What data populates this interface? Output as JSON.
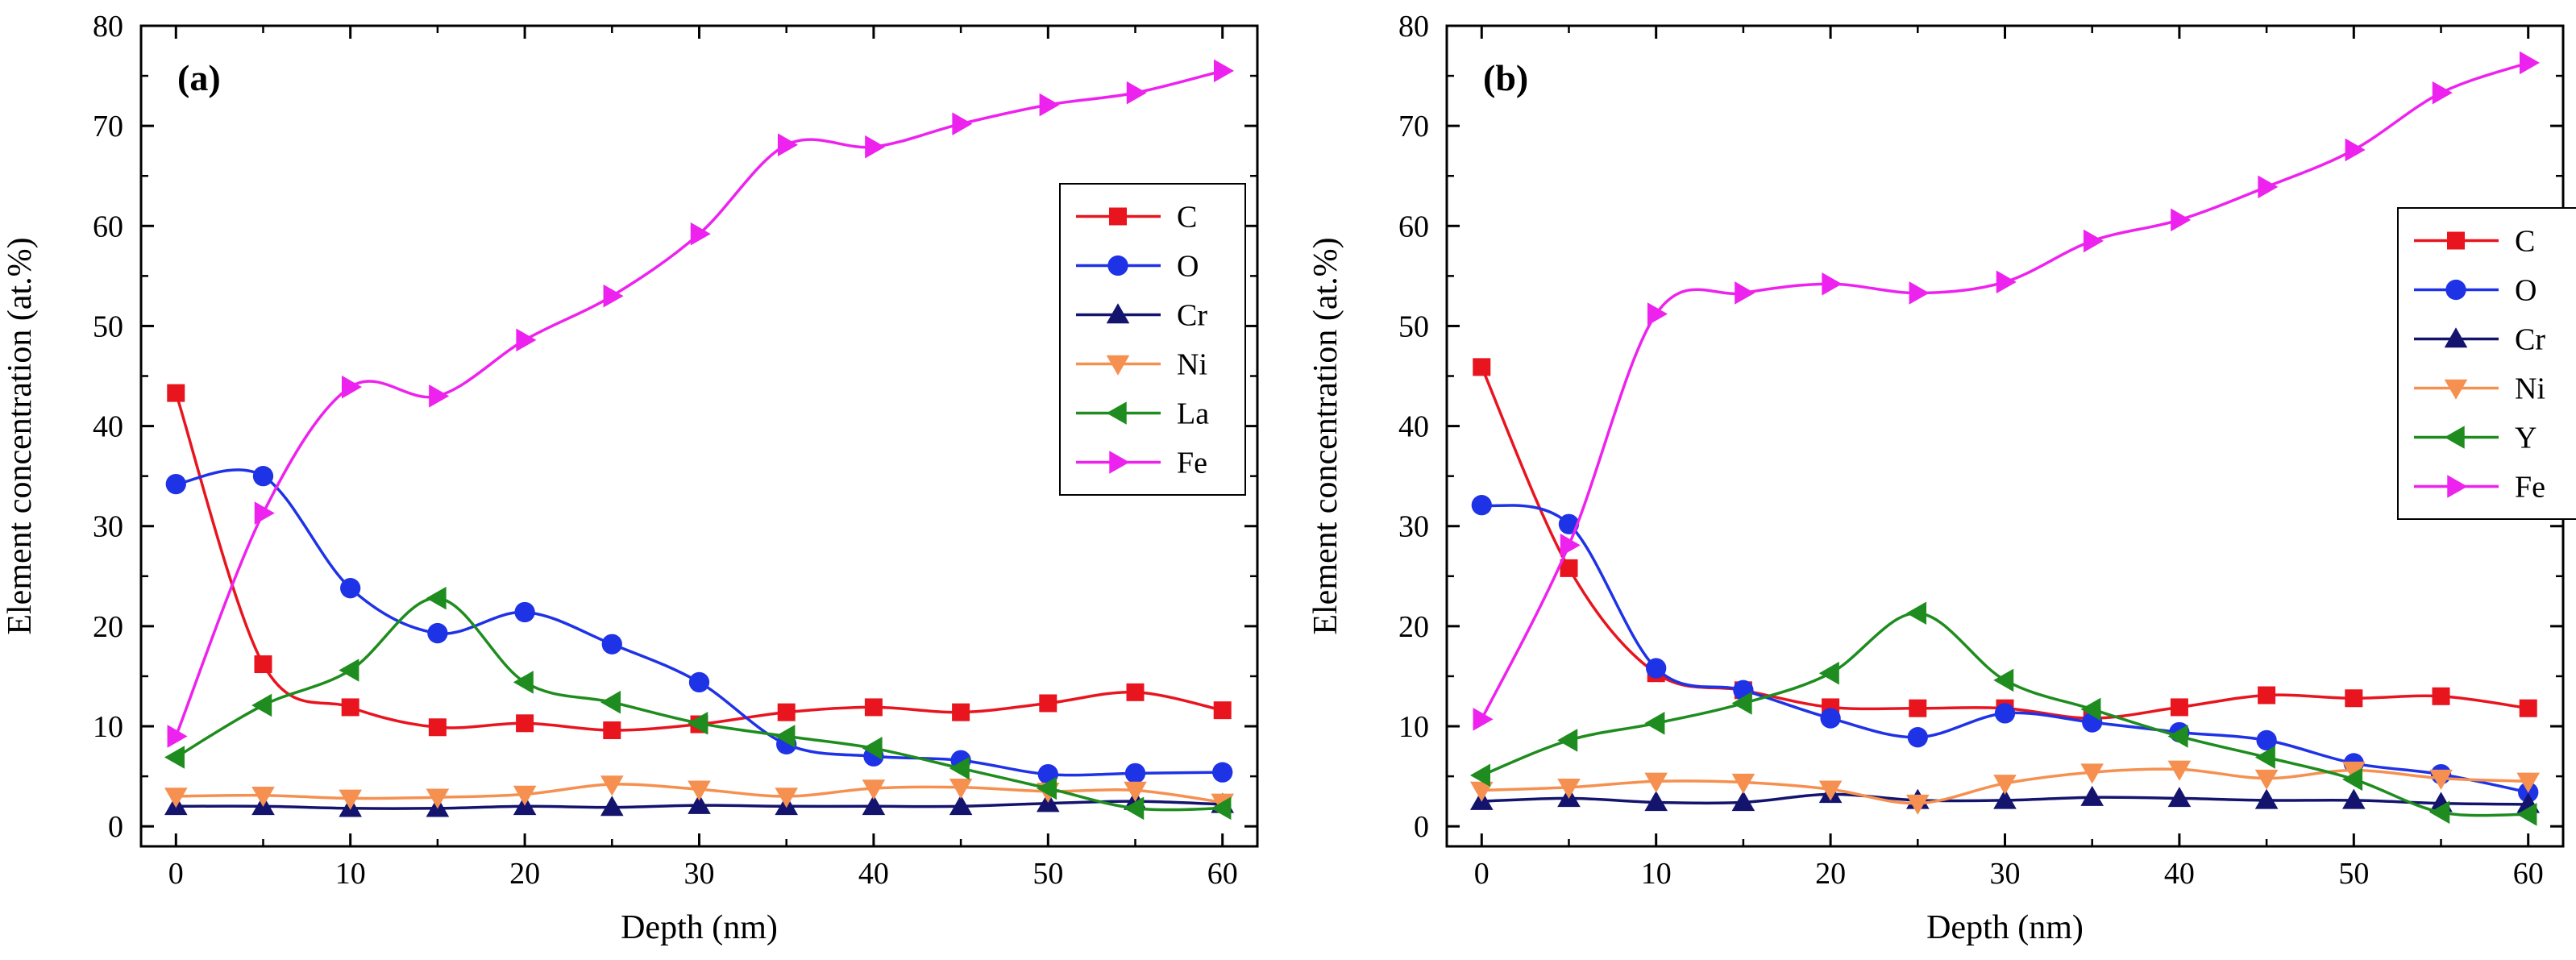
{
  "chart_data": [
    {
      "type": "line",
      "panel_label": "(a)",
      "xlabel": "Depth (nm)",
      "ylabel": "Element concentration (at.%)",
      "xlim": [
        -2,
        62
      ],
      "ylim": [
        -2,
        80
      ],
      "xticks": [
        0,
        10,
        20,
        30,
        40,
        50,
        60
      ],
      "yticks": [
        0,
        10,
        20,
        30,
        40,
        50,
        60,
        70,
        80
      ],
      "legend_position": "right",
      "x": [
        0,
        5,
        10,
        15,
        20,
        25,
        30,
        35,
        40,
        45,
        50,
        55,
        60
      ],
      "series": [
        {
          "name": "C",
          "color": "#e8141e",
          "marker": "square",
          "values": [
            43.3,
            16.2,
            11.9,
            9.9,
            10.3,
            9.6,
            10.2,
            11.4,
            11.9,
            11.4,
            12.3,
            13.4,
            11.6
          ]
        },
        {
          "name": "O",
          "color": "#1e32e6",
          "marker": "circle",
          "values": [
            34.2,
            35.0,
            23.8,
            19.3,
            21.4,
            18.2,
            14.4,
            8.2,
            7.0,
            6.6,
            5.2,
            5.3,
            5.4
          ]
        },
        {
          "name": "Cr",
          "color": "#14146e",
          "marker": "triangle-up",
          "values": [
            2.0,
            2.0,
            1.8,
            1.8,
            2.0,
            1.9,
            2.1,
            2.0,
            2.0,
            2.0,
            2.3,
            2.5,
            2.2
          ]
        },
        {
          "name": "Ni",
          "color": "#f59050",
          "marker": "triangle-down",
          "values": [
            3.0,
            3.1,
            2.8,
            2.9,
            3.2,
            4.2,
            3.7,
            3.0,
            3.8,
            3.9,
            3.5,
            3.6,
            2.4
          ]
        },
        {
          "name": "La",
          "color": "#1e8c1e",
          "marker": "triangle-left",
          "values": [
            6.9,
            12.1,
            15.6,
            22.8,
            14.4,
            12.4,
            10.3,
            9.0,
            7.8,
            5.8,
            3.8,
            1.8,
            1.8
          ]
        },
        {
          "name": "Fe",
          "color": "#ee22ee",
          "marker": "triangle-right",
          "values": [
            9.0,
            31.3,
            43.9,
            43.0,
            48.6,
            53.0,
            59.2,
            68.1,
            67.9,
            70.2,
            72.1,
            73.3,
            75.5
          ]
        }
      ]
    },
    {
      "type": "line",
      "panel_label": "(b)",
      "xlabel": "Depth (nm)",
      "ylabel": "Element concentration (at.%)",
      "xlim": [
        -2,
        62
      ],
      "ylim": [
        -2,
        80
      ],
      "xticks": [
        0,
        10,
        20,
        30,
        40,
        50,
        60
      ],
      "yticks": [
        0,
        10,
        20,
        30,
        40,
        50,
        60,
        70,
        80
      ],
      "legend_position": "right",
      "x": [
        0,
        5,
        10,
        15,
        20,
        25,
        30,
        35,
        40,
        45,
        50,
        55,
        60
      ],
      "series": [
        {
          "name": "C",
          "color": "#e8141e",
          "marker": "square",
          "values": [
            45.9,
            25.8,
            15.3,
            13.6,
            11.9,
            11.8,
            11.8,
            10.8,
            11.9,
            13.1,
            12.8,
            13.0,
            11.8
          ]
        },
        {
          "name": "O",
          "color": "#1e32e6",
          "marker": "circle",
          "values": [
            32.1,
            30.2,
            15.8,
            13.6,
            10.8,
            8.9,
            11.3,
            10.4,
            9.4,
            8.6,
            6.3,
            5.2,
            3.4
          ]
        },
        {
          "name": "Cr",
          "color": "#14146e",
          "marker": "triangle-up",
          "values": [
            2.5,
            2.8,
            2.4,
            2.4,
            3.2,
            2.6,
            2.6,
            2.9,
            2.8,
            2.6,
            2.6,
            2.3,
            2.2
          ]
        },
        {
          "name": "Ni",
          "color": "#f59050",
          "marker": "triangle-down",
          "values": [
            3.6,
            3.9,
            4.5,
            4.4,
            3.7,
            2.3,
            4.3,
            5.4,
            5.7,
            4.8,
            5.6,
            4.8,
            4.5
          ]
        },
        {
          "name": "Y",
          "color": "#1e8c1e",
          "marker": "triangle-left",
          "values": [
            5.1,
            8.6,
            10.3,
            12.3,
            15.3,
            21.3,
            14.6,
            11.7,
            9.0,
            6.9,
            4.7,
            1.4,
            1.2
          ]
        },
        {
          "name": "Fe",
          "color": "#ee22ee",
          "marker": "triangle-right",
          "values": [
            10.7,
            28.1,
            51.2,
            53.3,
            54.2,
            53.3,
            54.4,
            58.5,
            60.6,
            63.9,
            67.6,
            73.3,
            76.3
          ]
        }
      ]
    }
  ]
}
